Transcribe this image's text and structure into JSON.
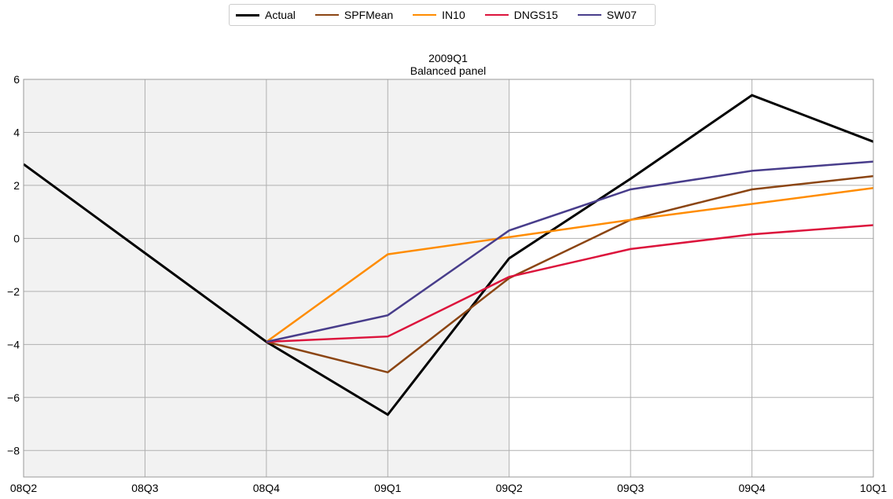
{
  "chart_data": {
    "type": "line",
    "title": "2009Q1",
    "subtitle": "Balanced panel",
    "xlabel": "",
    "ylabel": "",
    "x": [
      "08Q2",
      "08Q3",
      "08Q4",
      "09Q1",
      "09Q2",
      "09Q3",
      "09Q4",
      "10Q1"
    ],
    "ylim": [
      -9,
      6
    ],
    "yticks": [
      6,
      4,
      2,
      0,
      -2,
      -4,
      -6,
      -8
    ],
    "ytick_labels": [
      "6",
      "4",
      "2",
      "0",
      "−2",
      "−4",
      "−6",
      "−8"
    ],
    "grid": true,
    "legend_position": "top-center",
    "shaded_region": {
      "from": "08Q2",
      "to": "09Q2",
      "color": "#f2f2f2"
    },
    "series": [
      {
        "name": "Actual",
        "color": "#000000",
        "values": [
          2.8,
          -0.55,
          -3.9,
          -6.65,
          -0.75,
          2.25,
          5.4,
          3.65
        ]
      },
      {
        "name": "SPFMean",
        "color": "#8b4513",
        "values": [
          null,
          null,
          -3.9,
          -5.05,
          -1.5,
          0.7,
          1.85,
          2.35
        ]
      },
      {
        "name": "IN10",
        "color": "#ff8c00",
        "values": [
          null,
          null,
          -3.9,
          -0.6,
          0.05,
          0.7,
          1.3,
          1.9
        ]
      },
      {
        "name": "DNGS15",
        "color": "#dc143c",
        "values": [
          null,
          null,
          -3.9,
          -3.7,
          -1.45,
          -0.4,
          0.15,
          0.5
        ]
      },
      {
        "name": "SW07",
        "color": "#483d8b",
        "values": [
          null,
          null,
          -3.9,
          -2.9,
          0.3,
          1.85,
          2.55,
          2.9
        ]
      }
    ]
  }
}
